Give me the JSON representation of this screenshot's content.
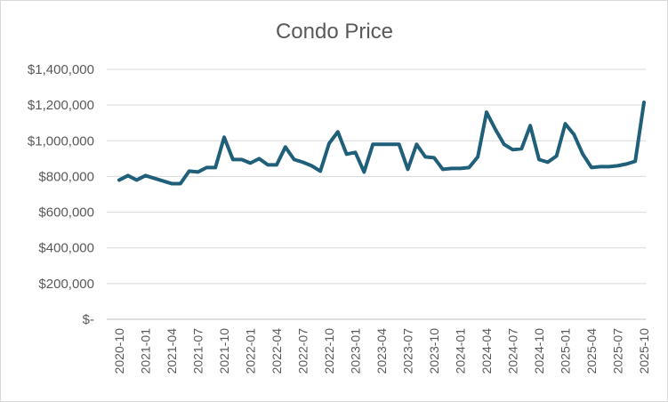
{
  "chart_data": {
    "type": "line",
    "title": "Condo Price",
    "xlabel": "",
    "ylabel": "",
    "ylim": [
      0,
      1400000
    ],
    "yticks": [
      0,
      200000,
      400000,
      600000,
      800000,
      1000000,
      1200000,
      1400000
    ],
    "ytick_labels": [
      "$-",
      "$200,000",
      "$400,000",
      "$600,000",
      "$800,000",
      "$1,000,000",
      "$1,200,000",
      "$1,400,000"
    ],
    "x": [
      "2020-10",
      "2020-11",
      "2020-12",
      "2021-01",
      "2021-02",
      "2021-03",
      "2021-04",
      "2021-05",
      "2021-06",
      "2021-07",
      "2021-08",
      "2021-09",
      "2021-10",
      "2021-11",
      "2021-12",
      "2022-01",
      "2022-02",
      "2022-03",
      "2022-04",
      "2022-05",
      "2022-06",
      "2022-07",
      "2022-08",
      "2022-09",
      "2022-10",
      "2022-11",
      "2022-12",
      "2023-01",
      "2023-02",
      "2023-03",
      "2023-04",
      "2023-05",
      "2023-06",
      "2023-07",
      "2023-08",
      "2023-09",
      "2023-10",
      "2023-11",
      "2023-12",
      "2024-01",
      "2024-02",
      "2024-03",
      "2024-04",
      "2024-05",
      "2024-06",
      "2024-07",
      "2024-08",
      "2024-09",
      "2024-10",
      "2024-11",
      "2024-12",
      "2025-01",
      "2025-02",
      "2025-03",
      "2025-04",
      "2025-05",
      "2025-06",
      "2025-07",
      "2025-08",
      "2025-09",
      "2025-10"
    ],
    "x_tick_labels": [
      "2020-10",
      "2021-01",
      "2021-04",
      "2021-07",
      "2021-10",
      "2022-01",
      "2022-04",
      "2022-07",
      "2022-10",
      "2023-01",
      "2023-04",
      "2023-07",
      "2023-10",
      "2024-01",
      "2024-04",
      "2024-07",
      "2024-10",
      "2025-01",
      "2025-04",
      "2025-07",
      "2025-10"
    ],
    "series": [
      {
        "color": "#1f5f7a",
        "values": [
          780000,
          805000,
          780000,
          805000,
          790000,
          775000,
          760000,
          760000,
          830000,
          825000,
          850000,
          850000,
          1020000,
          895000,
          895000,
          875000,
          900000,
          865000,
          865000,
          965000,
          895000,
          880000,
          860000,
          830000,
          985000,
          1050000,
          925000,
          935000,
          825000,
          980000,
          980000,
          980000,
          980000,
          840000,
          980000,
          910000,
          905000,
          840000,
          845000,
          845000,
          850000,
          910000,
          1160000,
          1065000,
          980000,
          950000,
          955000,
          1085000,
          895000,
          880000,
          915000,
          1095000,
          1035000,
          925000,
          850000,
          855000,
          855000,
          860000,
          870000,
          885000,
          1215000
        ]
      }
    ],
    "grid": true,
    "legend": "none"
  }
}
